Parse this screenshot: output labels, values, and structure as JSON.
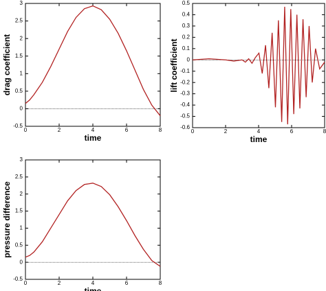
{
  "chart_data": [
    {
      "type": "line",
      "x_label": "time",
      "y_label": "drag coefficient",
      "color": "#b22222",
      "x": [
        0,
        0.25,
        0.5,
        1,
        1.5,
        2,
        2.5,
        3,
        3.5,
        4,
        4.5,
        5,
        5.5,
        6,
        6.5,
        7,
        7.5,
        8
      ],
      "values": [
        0.15,
        0.25,
        0.4,
        0.75,
        1.2,
        1.7,
        2.2,
        2.6,
        2.85,
        2.93,
        2.82,
        2.55,
        2.15,
        1.65,
        1.1,
        0.55,
        0.1,
        -0.2
      ],
      "xlim": [
        0,
        8
      ],
      "xticks": [
        0,
        2,
        4,
        6,
        8
      ],
      "ylim": [
        -0.5,
        3
      ],
      "yticks": [
        -0.5,
        0,
        0.5,
        1,
        1.5,
        2,
        2.5,
        3
      ],
      "hline": 0
    },
    {
      "type": "line",
      "x_label": "time",
      "y_label": "lift coefficient",
      "color": "#b22222",
      "x": [
        0,
        1,
        2,
        2.5,
        3,
        3.2,
        3.4,
        3.6,
        3.8,
        4.02,
        4.22,
        4.42,
        4.62,
        4.82,
        5.02,
        5.2,
        5.4,
        5.58,
        5.76,
        5.95,
        6.13,
        6.32,
        6.5,
        6.69,
        6.88,
        7.06,
        7.25,
        7.45,
        7.7,
        8
      ],
      "values": [
        0,
        0.01,
        0,
        -0.01,
        0,
        -0.02,
        0.01,
        -0.03,
        0.02,
        0.06,
        -0.12,
        0.13,
        -0.25,
        0.24,
        -0.42,
        0.35,
        -0.55,
        0.47,
        -0.57,
        0.45,
        -0.48,
        0.4,
        -0.43,
        0.36,
        -0.33,
        0.3,
        -0.2,
        0.1,
        -0.08,
        -0.02
      ],
      "xlim": [
        0,
        8
      ],
      "xticks": [
        0,
        2,
        4,
        6,
        8
      ],
      "ylim": [
        -0.6,
        0.5
      ],
      "yticks": [
        -0.6,
        -0.5,
        -0.4,
        -0.3,
        -0.2,
        -0.1,
        0,
        0.1,
        0.2,
        0.3,
        0.4,
        0.5
      ],
      "hline": 0
    },
    {
      "type": "line",
      "x_label": "time",
      "y_label": "pressure difference",
      "color": "#b22222",
      "x": [
        0,
        0.25,
        0.5,
        1,
        1.5,
        2,
        2.5,
        3,
        3.5,
        4,
        4.5,
        5,
        5.5,
        6,
        6.5,
        7,
        7.5,
        8
      ],
      "values": [
        0.15,
        0.2,
        0.3,
        0.6,
        1.0,
        1.4,
        1.8,
        2.1,
        2.28,
        2.32,
        2.22,
        1.98,
        1.63,
        1.22,
        0.78,
        0.38,
        0.05,
        -0.12
      ],
      "xlim": [
        0,
        8
      ],
      "xticks": [
        0,
        2,
        4,
        6,
        8
      ],
      "ylim": [
        -0.5,
        3
      ],
      "yticks": [
        -0.5,
        0,
        0.5,
        1,
        1.5,
        2,
        2.5,
        3
      ],
      "hline": 0
    }
  ]
}
